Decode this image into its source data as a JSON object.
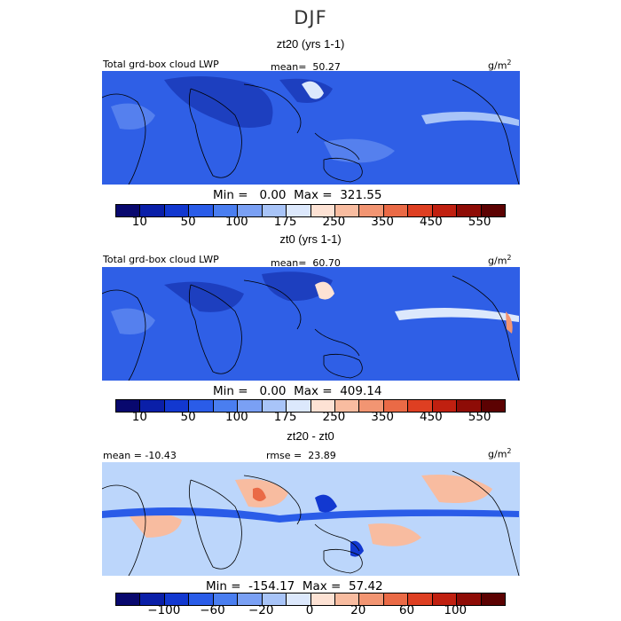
{
  "title": "DJF",
  "units_plain": "g/m",
  "units_sup": "2",
  "panels": [
    {
      "title": "zt20 (yrs 1-1)",
      "left_label": "Total grd-box cloud LWP",
      "mean_label": "mean=",
      "mean_value": "50.27",
      "min_label": "Min =",
      "min_value": "0.00",
      "max_label": "Max =",
      "max_value": "321.55",
      "colorbar_ticks": [
        "10",
        "50",
        "100",
        "175",
        "250",
        "350",
        "450",
        "550"
      ]
    },
    {
      "title": "zt0 (yrs 1-1)",
      "left_label": "Total grd-box cloud LWP",
      "mean_label": "mean=",
      "mean_value": "60.70",
      "min_label": "Min =",
      "min_value": "0.00",
      "max_label": "Max =",
      "max_value": "409.14",
      "colorbar_ticks": [
        "10",
        "50",
        "100",
        "175",
        "250",
        "350",
        "450",
        "550"
      ]
    },
    {
      "title": "zt20 - zt0",
      "left_label": "mean = -10.43",
      "mean_label": "rmse =",
      "mean_value": "23.89",
      "min_label": "Min =",
      "min_value": "-154.17",
      "max_label": "Max =",
      "max_value": "57.42",
      "colorbar_ticks": [
        "−100",
        "−60",
        "−20",
        "0",
        "20",
        "60",
        "100"
      ]
    }
  ],
  "colors": {
    "colorbar": [
      "#08086e",
      "#0a1fa8",
      "#1238d0",
      "#2a5ce8",
      "#4a7ef0",
      "#7aa0f4",
      "#a8c4f8",
      "#dce8fc",
      "#fde2d4",
      "#f8bca0",
      "#f29572",
      "#ea6a46",
      "#de3f22",
      "#c02010",
      "#8e0c06",
      "#5c0202"
    ],
    "ocean_abs": "#2f5fe6",
    "ocean_diff": "#bcd6fb"
  }
}
